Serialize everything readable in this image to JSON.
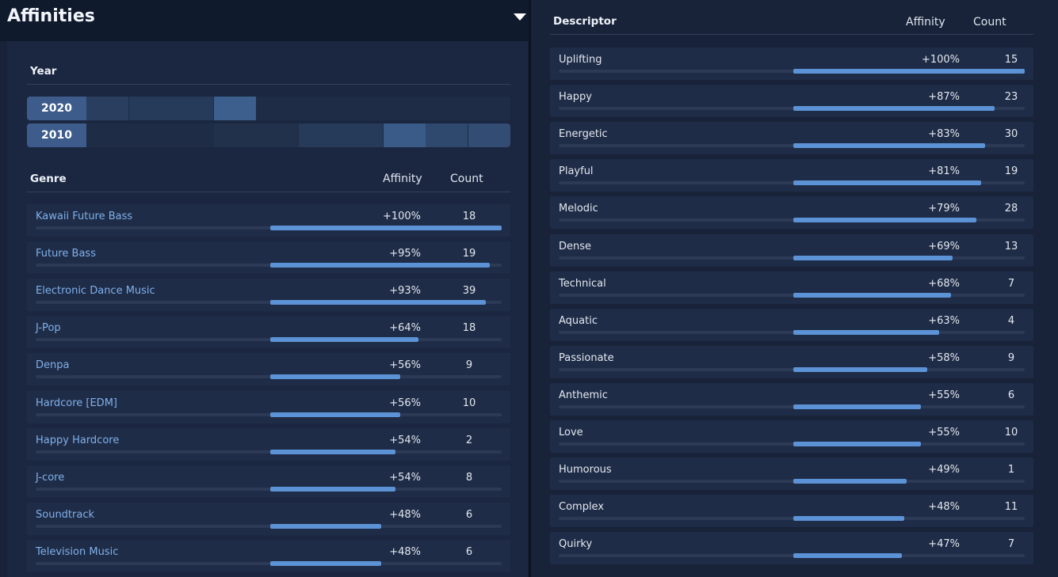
{
  "app": {
    "title": "Affinities"
  },
  "year": {
    "header": "Year",
    "rows": [
      {
        "label": "2020",
        "decade_affinity": [
          0.2,
          0.15,
          0.15,
          0.55,
          0,
          0,
          0,
          0,
          0,
          0
        ]
      },
      {
        "label": "2010",
        "decade_affinity": [
          0,
          0,
          0,
          0.05,
          0.05,
          0.15,
          0.15,
          0.5,
          0.3,
          0.35
        ]
      }
    ]
  },
  "genre": {
    "header": "Genre",
    "affinity_header": "Affinity",
    "count_header": "Count",
    "rows": [
      {
        "name": "Kawaii Future Bass",
        "affinity": "+100%",
        "count": "18",
        "pct": 100
      },
      {
        "name": "Future Bass",
        "affinity": "+95%",
        "count": "19",
        "pct": 95
      },
      {
        "name": "Electronic Dance Music",
        "affinity": "+93%",
        "count": "39",
        "pct": 93
      },
      {
        "name": "J-Pop",
        "affinity": "+64%",
        "count": "18",
        "pct": 64
      },
      {
        "name": "Denpa",
        "affinity": "+56%",
        "count": "9",
        "pct": 56
      },
      {
        "name": "Hardcore [EDM]",
        "affinity": "+56%",
        "count": "10",
        "pct": 56
      },
      {
        "name": "Happy Hardcore",
        "affinity": "+54%",
        "count": "2",
        "pct": 54
      },
      {
        "name": "J-core",
        "affinity": "+54%",
        "count": "8",
        "pct": 54
      },
      {
        "name": "Soundtrack",
        "affinity": "+48%",
        "count": "6",
        "pct": 48
      },
      {
        "name": "Television Music",
        "affinity": "+48%",
        "count": "6",
        "pct": 48
      }
    ]
  },
  "descriptor": {
    "header": "Descriptor",
    "affinity_header": "Affinity",
    "count_header": "Count",
    "rows": [
      {
        "name": "Uplifting",
        "affinity": "+100%",
        "count": "15",
        "pct": 100
      },
      {
        "name": "Happy",
        "affinity": "+87%",
        "count": "23",
        "pct": 87
      },
      {
        "name": "Energetic",
        "affinity": "+83%",
        "count": "30",
        "pct": 83
      },
      {
        "name": "Playful",
        "affinity": "+81%",
        "count": "19",
        "pct": 81
      },
      {
        "name": "Melodic",
        "affinity": "+79%",
        "count": "28",
        "pct": 79
      },
      {
        "name": "Dense",
        "affinity": "+69%",
        "count": "13",
        "pct": 69
      },
      {
        "name": "Technical",
        "affinity": "+68%",
        "count": "7",
        "pct": 68
      },
      {
        "name": "Aquatic",
        "affinity": "+63%",
        "count": "4",
        "pct": 63
      },
      {
        "name": "Passionate",
        "affinity": "+58%",
        "count": "9",
        "pct": 58
      },
      {
        "name": "Anthemic",
        "affinity": "+55%",
        "count": "6",
        "pct": 55
      },
      {
        "name": "Love",
        "affinity": "+55%",
        "count": "10",
        "pct": 55
      },
      {
        "name": "Humorous",
        "affinity": "+49%",
        "count": "1",
        "pct": 49
      },
      {
        "name": "Complex",
        "affinity": "+48%",
        "count": "11",
        "pct": 48
      },
      {
        "name": "Quirky",
        "affinity": "+47%",
        "count": "7",
        "pct": 47
      }
    ]
  },
  "colors": {
    "background": "#182238",
    "row_background": "#1f2c47",
    "bar_fill": "#5c93d6",
    "bar_track": "#2c3a55",
    "link_text": "#7fb0ea",
    "year_label_bg": "#3d5c8c"
  },
  "icons": {
    "collapse": "chevron-down-icon"
  }
}
